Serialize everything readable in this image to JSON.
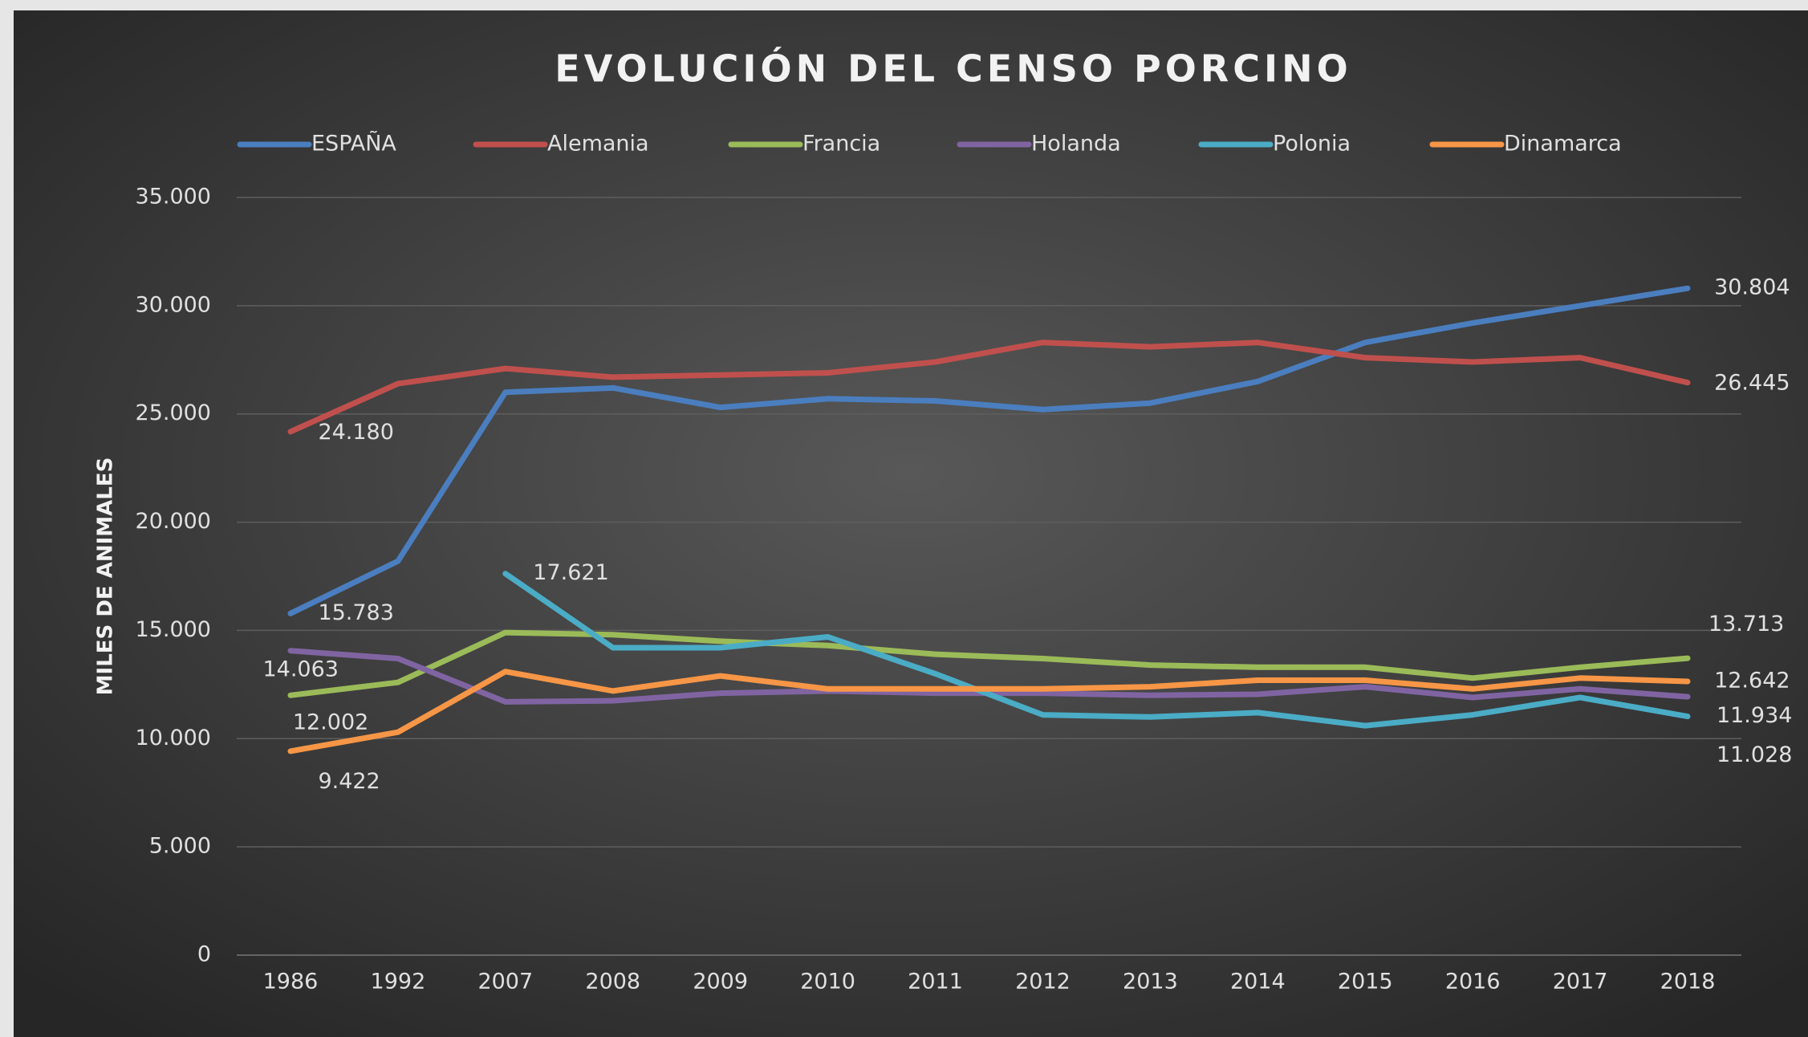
{
  "chart_data": {
    "type": "line",
    "title": "EVOLUCIÓN DEL CENSO PORCINO",
    "y_label": "MILES DE ANIMALES",
    "categories": [
      "1986",
      "1992",
      "2007",
      "2008",
      "2009",
      "2010",
      "2011",
      "2012",
      "2013",
      "2014",
      "2015",
      "2016",
      "2017",
      "2018"
    ],
    "ylim": [
      0,
      35000
    ],
    "yticks": [
      0,
      {
        "value": 5000,
        "label": "5.000"
      },
      {
        "value": 10000,
        "label": "10.000"
      },
      {
        "value": 15000,
        "label": "15.000"
      },
      {
        "value": 20000,
        "label": "20.000"
      },
      {
        "value": 25000,
        "label": "25.000"
      },
      {
        "value": 30000,
        "label": "30.000"
      },
      {
        "value": 35000,
        "label": "35.000"
      }
    ],
    "grid": true,
    "legend": "top",
    "series": [
      {
        "name": "ESPAÑA",
        "color": "#4a7ebf",
        "values": [
          15783,
          18200,
          26000,
          26200,
          25300,
          25700,
          25600,
          25200,
          25500,
          26500,
          28300,
          29200,
          30000,
          30804
        ],
        "value_labels": [
          "15.783",
          null,
          null,
          null,
          null,
          null,
          null,
          null,
          null,
          null,
          null,
          null,
          null,
          "30.804"
        ]
      },
      {
        "name": "Alemania",
        "color": "#c0504d",
        "values": [
          24180,
          26400,
          27100,
          26700,
          26800,
          26900,
          27400,
          28300,
          28100,
          28300,
          27600,
          27400,
          27600,
          26445
        ],
        "value_labels": [
          "24.180",
          null,
          null,
          null,
          null,
          null,
          null,
          null,
          null,
          null,
          null,
          null,
          null,
          "26.445"
        ]
      },
      {
        "name": "Francia",
        "color": "#9bbb59",
        "values": [
          12002,
          12600,
          14900,
          14800,
          14500,
          14300,
          13900,
          13700,
          13400,
          13300,
          13300,
          12800,
          13300,
          13713
        ],
        "value_labels": [
          "12.002",
          null,
          null,
          null,
          null,
          null,
          null,
          null,
          null,
          null,
          null,
          null,
          null,
          "13.713"
        ]
      },
      {
        "name": "Holanda",
        "color": "#8064a2",
        "values": [
          14063,
          13700,
          11700,
          11750,
          12100,
          12200,
          12100,
          12100,
          12000,
          12050,
          12400,
          11900,
          12300,
          11934
        ],
        "value_labels": [
          "14.063",
          null,
          null,
          null,
          null,
          null,
          null,
          null,
          null,
          null,
          null,
          null,
          null,
          "11.934"
        ]
      },
      {
        "name": "Polonia",
        "color": "#4bacc6",
        "values": [
          null,
          null,
          17621,
          14200,
          14200,
          14700,
          13000,
          11100,
          11000,
          11200,
          10600,
          11100,
          11900,
          11028
        ],
        "value_labels": [
          null,
          null,
          "17.621",
          null,
          null,
          null,
          null,
          null,
          null,
          null,
          null,
          null,
          null,
          "11.028"
        ]
      },
      {
        "name": "Dinamarca",
        "color": "#f79646",
        "values": [
          9422,
          10300,
          13100,
          12200,
          12900,
          12300,
          12300,
          12300,
          12400,
          12700,
          12700,
          12300,
          12800,
          12642
        ],
        "value_labels": [
          "9.422",
          null,
          null,
          null,
          null,
          null,
          null,
          null,
          null,
          null,
          null,
          null,
          null,
          "12.642"
        ]
      }
    ]
  }
}
